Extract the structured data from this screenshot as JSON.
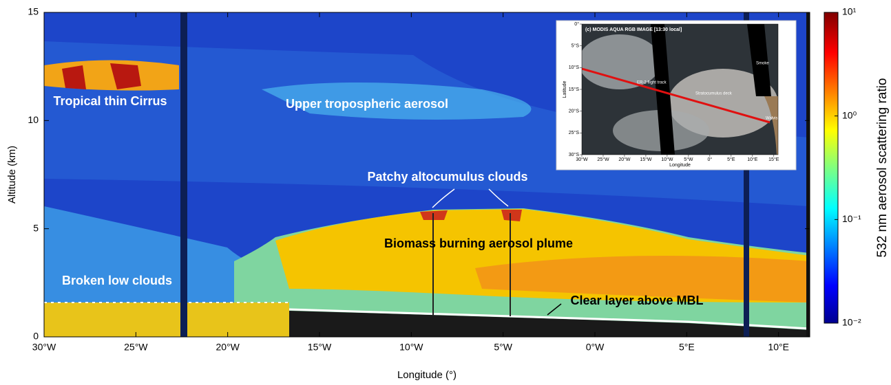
{
  "chart_data": {
    "type": "curtain",
    "xlabel": "Longitude (°)",
    "ylabel": "Altitude (km)",
    "xlim": [
      -30,
      11.7
    ],
    "xticks": [
      {
        "value": -30,
        "label": "30°W"
      },
      {
        "value": -25,
        "label": "25°W"
      },
      {
        "value": -20,
        "label": "20°W"
      },
      {
        "value": -15,
        "label": "15°W"
      },
      {
        "value": -10,
        "label": "10°W"
      },
      {
        "value": -5,
        "label": "5°W"
      },
      {
        "value": 0,
        "label": "0°W"
      },
      {
        "value": 5,
        "label": "5°E"
      },
      {
        "value": 10,
        "label": "10°E"
      }
    ],
    "ylim": [
      0,
      15
    ],
    "yticks": [
      0,
      5,
      10,
      15
    ],
    "colorbar": {
      "label": "532 nm aerosol scattering ratio",
      "scale": "log",
      "lim": [
        0.01,
        10
      ],
      "ticks": [
        {
          "value": 0.01,
          "label": "10⁻²"
        },
        {
          "value": 0.1,
          "label": "10⁻¹"
        },
        {
          "value": 1,
          "label": "10⁰"
        },
        {
          "value": 10,
          "label": "10¹"
        }
      ]
    },
    "annotations": [
      {
        "text": "Tropical thin Cirrus"
      },
      {
        "text": "Upper tropospheric aerosol"
      },
      {
        "text": "Patchy altocumulus clouds"
      },
      {
        "text": "Biomass burning aerosol plume"
      },
      {
        "text": "Broken low clouds"
      },
      {
        "text": "Clear layer above MBL"
      }
    ],
    "inset": {
      "title": "(c) MODIS AQUA RGB IMAGE [13:30 local]",
      "xlabel": "Longitude",
      "ylabel": "Latitude",
      "xlim": [
        -30,
        16
      ],
      "ylim": [
        -30,
        0
      ],
      "xticks": [
        {
          "value": -30,
          "label": "30°W"
        },
        {
          "value": -25,
          "label": "25°W"
        },
        {
          "value": -20,
          "label": "20°W"
        },
        {
          "value": -15,
          "label": "15°W"
        },
        {
          "value": -10,
          "label": "10°W"
        },
        {
          "value": -5,
          "label": "5°W"
        },
        {
          "value": 0,
          "label": "0°"
        },
        {
          "value": 5,
          "label": "5°E"
        },
        {
          "value": 10,
          "label": "10°E"
        },
        {
          "value": 15,
          "label": "15°E"
        }
      ],
      "yticks": [
        {
          "value": 0,
          "label": "0°"
        },
        {
          "value": -5,
          "label": "5°S"
        },
        {
          "value": -10,
          "label": "10°S"
        },
        {
          "value": -15,
          "label": "15°S"
        },
        {
          "value": -20,
          "label": "20°S"
        },
        {
          "value": -25,
          "label": "25°S"
        },
        {
          "value": -30,
          "label": "30°S"
        }
      ],
      "labels": [
        {
          "text": "Smoke"
        },
        {
          "text": "ER-2 flight track"
        },
        {
          "text": "Stratocumulus deck"
        },
        {
          "text": "Walvis Bay"
        }
      ]
    }
  }
}
